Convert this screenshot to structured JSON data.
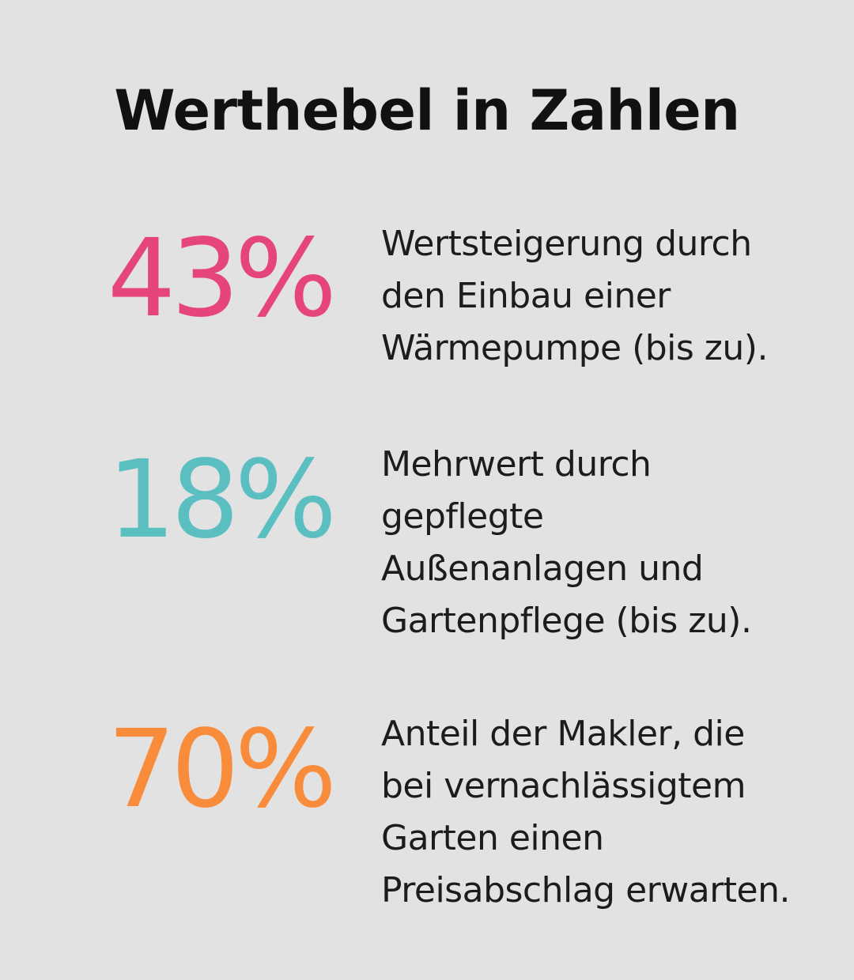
{
  "title": "Werthebel in Zahlen",
  "stats": [
    {
      "value": "43%",
      "color": "#e6457a",
      "lines": [
        "Wertsteigerung durch",
        "den Einbau einer",
        "Wärmepumpe (bis zu)."
      ]
    },
    {
      "value": "18%",
      "color": "#5bbfc1",
      "lines": [
        "Mehrwert durch",
        "gepflegte",
        "Außenanlagen und",
        "Gartenpflege (bis zu)."
      ]
    },
    {
      "value": "70%",
      "color": "#f98c3b",
      "lines": [
        "Anteil der Makler, die",
        "bei vernachlässigtem",
        "Garten einen",
        "Preisabschlag erwarten."
      ]
    }
  ]
}
